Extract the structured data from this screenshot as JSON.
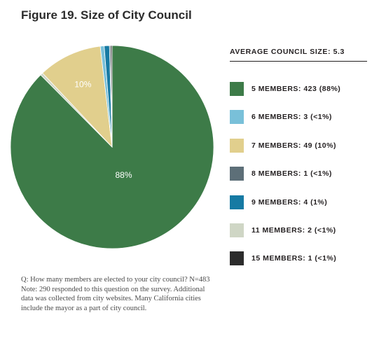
{
  "title": "Figure 19. Size of City Council",
  "legend_title": "AVERAGE COUNCIL SIZE: 5.3",
  "note": "Q:  How many members are elected to your city council? N=483 Note: 290 responded to this question on the survey. Additional data was collected from city websites. Many California cities include the mayor as a part of city council.",
  "chart_data": {
    "type": "pie",
    "title": "Figure 19. Size of City Council",
    "subtitle": "AVERAGE COUNCIL SIZE: 5.3",
    "categories": [
      "5 MEMBERS: 423 (88%)",
      "6 MEMBERS: 3 (<1%)",
      "7 MEMBERS: 49 (10%)",
      "8 MEMBERS: 1 (<1%)",
      "9 MEMBERS: 4 (1%)",
      "11 MEMBERS: 2 (<1%)",
      "15 MEMBERS: 1 (<1%)"
    ],
    "values": [
      423,
      3,
      49,
      1,
      4,
      2,
      1
    ],
    "colors": [
      "#3d7b48",
      "#79c0d9",
      "#e1cf8d",
      "#5d6f78",
      "#167aa3",
      "#cfd6c5",
      "#2c2c2c"
    ],
    "slice_labels": [
      {
        "index": 0,
        "text": "88%"
      },
      {
        "index": 2,
        "text": "10%"
      }
    ],
    "legend_position": "right"
  }
}
